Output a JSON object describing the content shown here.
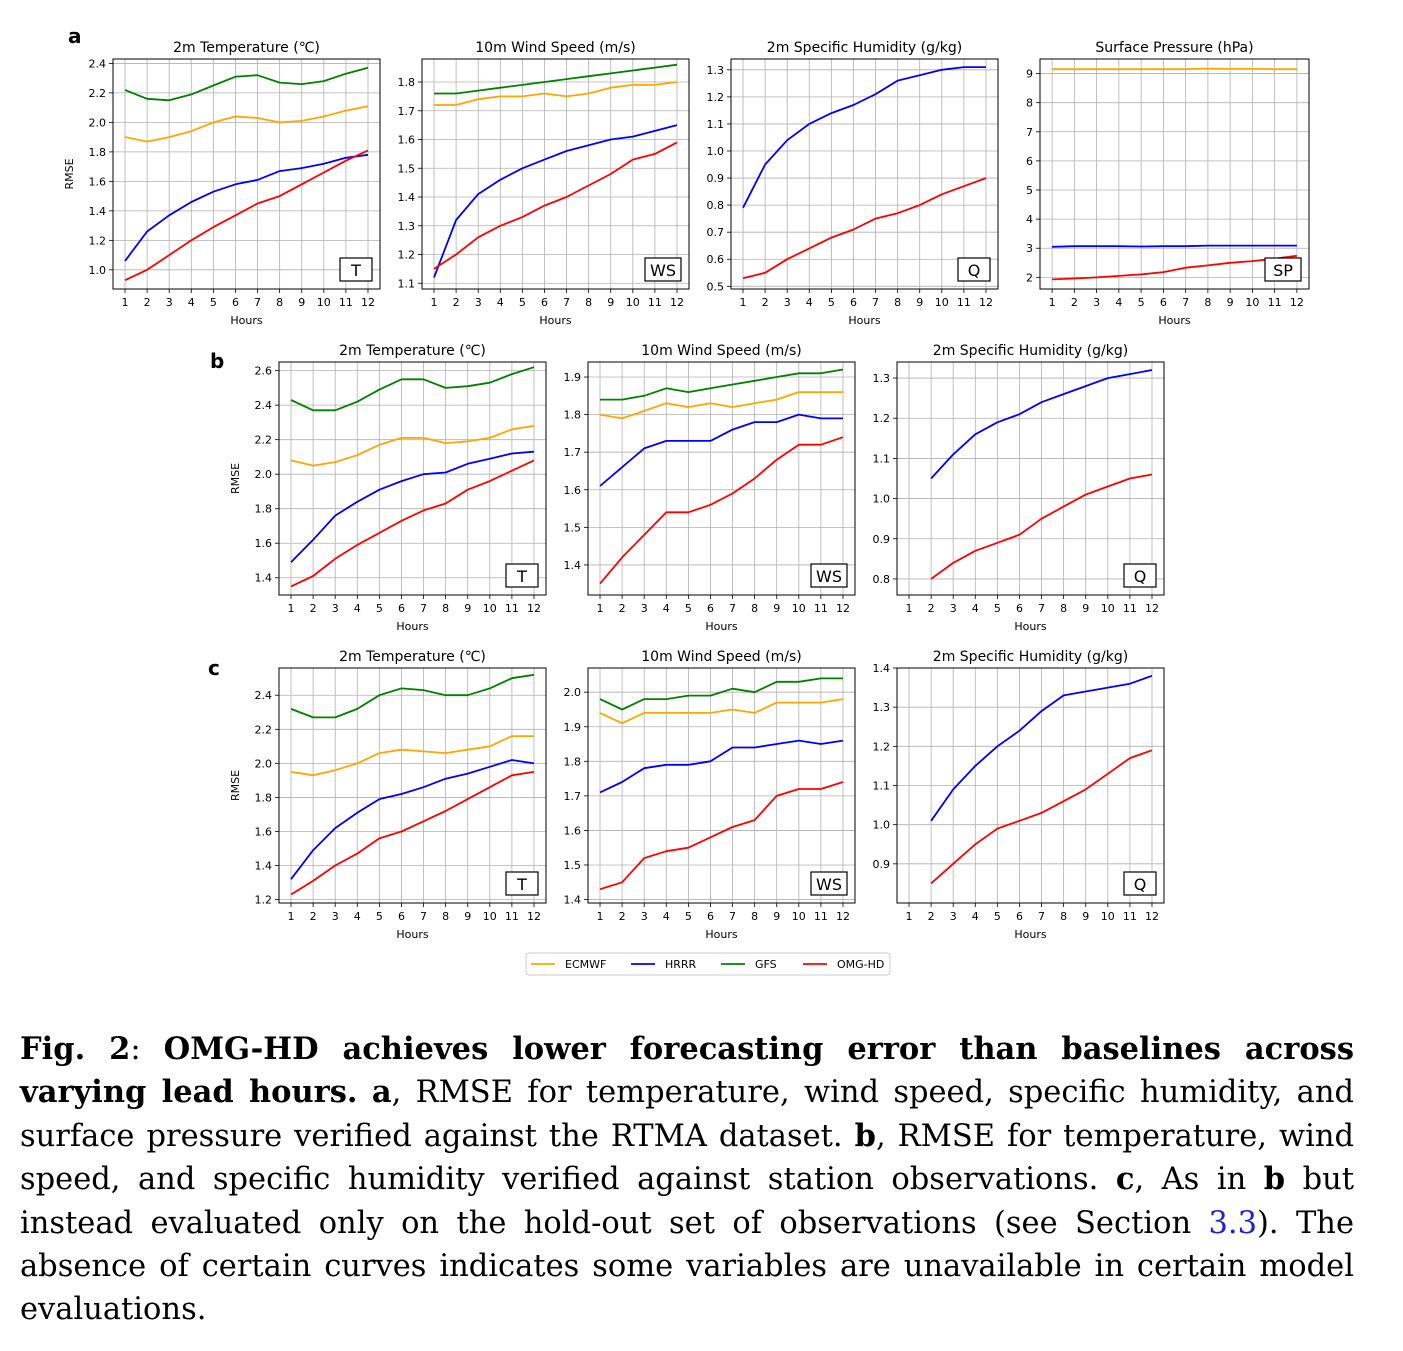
{
  "panel_letters": [
    "a",
    "b",
    "c"
  ],
  "legend": [
    {
      "name": "ECMWF",
      "color": "#ffa500"
    },
    {
      "name": "HRRR",
      "color": "#0000ff"
    },
    {
      "name": "GFS",
      "color": "#008000"
    },
    {
      "name": "OMG-HD",
      "color": "#ff0000"
    }
  ],
  "caption": {
    "fig_label": "Fig. 2",
    "colon": ": ",
    "title": "OMG-HD achieves lower forecasting error than baselines across varying lead hours.",
    "a_letter": "a",
    "a_text": ", RMSE for temperature, wind speed, specific humidity, and surface pressure verified against the RTMA dataset. ",
    "b_letter": "b",
    "b_text": ", RMSE for temperature, wind speed, and specific humidity verified against station observations. ",
    "c_letter": "c",
    "c_text_1": ", As in ",
    "c_ref": "b",
    "c_text_2": " but instead evaluated only on the hold-out set of observations (see Section ",
    "section_ref": "3.3",
    "c_text_3": "). The absence of certain curves indicates some variables are unavailable in certain model evaluations."
  },
  "chart_data": [
    {
      "panel": "a",
      "type": "line",
      "title": "2m Temperature (℃)",
      "xlabel": "Hours",
      "ylabel": "RMSE",
      "tag": "T",
      "x": [
        1,
        2,
        3,
        4,
        5,
        6,
        7,
        8,
        9,
        10,
        11,
        12
      ],
      "ylim": [
        0.87,
        2.43
      ],
      "yticks": [
        1.0,
        1.2,
        1.4,
        1.6,
        1.8,
        2.0,
        2.2,
        2.4
      ],
      "grid": true,
      "series": [
        {
          "name": "ECMWF",
          "color": "#ffa500",
          "values": [
            1.9,
            1.87,
            1.9,
            1.94,
            2.0,
            2.04,
            2.03,
            2.0,
            2.01,
            2.04,
            2.08,
            2.11
          ]
        },
        {
          "name": "HRRR",
          "color": "#0000ff",
          "values": [
            1.06,
            1.26,
            1.37,
            1.46,
            1.53,
            1.58,
            1.61,
            1.67,
            1.69,
            1.72,
            1.76,
            1.78
          ]
        },
        {
          "name": "GFS",
          "color": "#008000",
          "values": [
            2.22,
            2.16,
            2.15,
            2.19,
            2.25,
            2.31,
            2.32,
            2.27,
            2.26,
            2.28,
            2.33,
            2.37
          ]
        },
        {
          "name": "OMG-HD",
          "color": "#ff0000",
          "values": [
            0.93,
            1.0,
            1.1,
            1.2,
            1.29,
            1.37,
            1.45,
            1.5,
            1.58,
            1.66,
            1.74,
            1.81
          ]
        }
      ]
    },
    {
      "panel": "a",
      "type": "line",
      "title": "10m Wind Speed (m/s)",
      "xlabel": "Hours",
      "ylabel": "",
      "tag": "WS",
      "x": [
        1,
        2,
        3,
        4,
        5,
        6,
        7,
        8,
        9,
        10,
        11,
        12
      ],
      "ylim": [
        1.08,
        1.88
      ],
      "yticks": [
        1.1,
        1.2,
        1.3,
        1.4,
        1.5,
        1.6,
        1.7,
        1.8
      ],
      "grid": true,
      "series": [
        {
          "name": "ECMWF",
          "color": "#ffa500",
          "values": [
            1.72,
            1.72,
            1.74,
            1.75,
            1.75,
            1.76,
            1.75,
            1.76,
            1.78,
            1.79,
            1.79,
            1.8
          ]
        },
        {
          "name": "HRRR",
          "color": "#0000ff",
          "values": [
            1.12,
            1.32,
            1.41,
            1.46,
            1.5,
            1.53,
            1.56,
            1.58,
            1.6,
            1.61,
            1.63,
            1.65
          ]
        },
        {
          "name": "GFS",
          "color": "#008000",
          "values": [
            1.76,
            1.76,
            1.77,
            1.78,
            1.79,
            1.8,
            1.81,
            1.82,
            1.83,
            1.84,
            1.85,
            1.86
          ]
        },
        {
          "name": "OMG-HD",
          "color": "#ff0000",
          "values": [
            1.15,
            1.2,
            1.26,
            1.3,
            1.33,
            1.37,
            1.4,
            1.44,
            1.48,
            1.53,
            1.55,
            1.59
          ]
        }
      ]
    },
    {
      "panel": "a",
      "type": "line",
      "title": "2m Specific Humidity (g/kg)",
      "xlabel": "Hours",
      "ylabel": "",
      "tag": "Q",
      "x": [
        1,
        2,
        3,
        4,
        5,
        6,
        7,
        8,
        9,
        10,
        11,
        12
      ],
      "ylim": [
        0.49,
        1.34
      ],
      "yticks": [
        0.5,
        0.6,
        0.7,
        0.8,
        0.9,
        1.0,
        1.1,
        1.2,
        1.3
      ],
      "grid": true,
      "series": [
        {
          "name": "HRRR",
          "color": "#0000ff",
          "values": [
            0.79,
            0.95,
            1.04,
            1.1,
            1.14,
            1.17,
            1.21,
            1.26,
            1.28,
            1.3,
            1.31,
            1.31
          ]
        },
        {
          "name": "OMG-HD",
          "color": "#ff0000",
          "values": [
            0.53,
            0.55,
            0.6,
            0.64,
            0.68,
            0.71,
            0.75,
            0.77,
            0.8,
            0.84,
            0.87,
            0.9
          ]
        }
      ]
    },
    {
      "panel": "a",
      "type": "line",
      "title": "Surface Pressure (hPa)",
      "xlabel": "Hours",
      "ylabel": "",
      "tag": "SP",
      "x": [
        1,
        2,
        3,
        4,
        5,
        6,
        7,
        8,
        9,
        10,
        11,
        12
      ],
      "ylim": [
        1.6,
        9.5
      ],
      "yticks": [
        2,
        3,
        4,
        5,
        6,
        7,
        8,
        9
      ],
      "grid": true,
      "series": [
        {
          "name": "ECMWF",
          "color": "#ffa500",
          "values": [
            9.15,
            9.15,
            9.15,
            9.15,
            9.15,
            9.15,
            9.15,
            9.17,
            9.16,
            9.16,
            9.15,
            9.15
          ]
        },
        {
          "name": "HRRR",
          "color": "#0000ff",
          "values": [
            3.05,
            3.07,
            3.07,
            3.07,
            3.06,
            3.07,
            3.07,
            3.09,
            3.09,
            3.09,
            3.09,
            3.09
          ]
        },
        {
          "name": "OMG-HD",
          "color": "#ff0000",
          "values": [
            1.93,
            1.96,
            2.0,
            2.05,
            2.1,
            2.18,
            2.33,
            2.41,
            2.5,
            2.56,
            2.64,
            2.74
          ]
        }
      ]
    },
    {
      "panel": "b",
      "type": "line",
      "title": "2m Temperature (℃)",
      "xlabel": "Hours",
      "ylabel": "RMSE",
      "tag": "T",
      "x": [
        1,
        2,
        3,
        4,
        5,
        6,
        7,
        8,
        9,
        10,
        11,
        12
      ],
      "ylim": [
        1.3,
        2.65
      ],
      "yticks": [
        1.4,
        1.6,
        1.8,
        2.0,
        2.2,
        2.4,
        2.6
      ],
      "grid": true,
      "series": [
        {
          "name": "ECMWF",
          "color": "#ffa500",
          "values": [
            2.08,
            2.05,
            2.07,
            2.11,
            2.17,
            2.21,
            2.21,
            2.18,
            2.19,
            2.21,
            2.26,
            2.28
          ]
        },
        {
          "name": "HRRR",
          "color": "#0000ff",
          "values": [
            1.49,
            1.62,
            1.76,
            1.84,
            1.91,
            1.96,
            2.0,
            2.01,
            2.06,
            2.09,
            2.12,
            2.13
          ]
        },
        {
          "name": "GFS",
          "color": "#008000",
          "values": [
            2.43,
            2.37,
            2.37,
            2.42,
            2.49,
            2.55,
            2.55,
            2.5,
            2.51,
            2.53,
            2.58,
            2.62
          ]
        },
        {
          "name": "OMG-HD",
          "color": "#ff0000",
          "values": [
            1.35,
            1.41,
            1.51,
            1.59,
            1.66,
            1.73,
            1.79,
            1.83,
            1.91,
            1.96,
            2.02,
            2.08
          ]
        }
      ]
    },
    {
      "panel": "b",
      "type": "line",
      "title": "10m Wind Speed (m/s)",
      "xlabel": "Hours",
      "ylabel": "",
      "tag": "WS",
      "x": [
        1,
        2,
        3,
        4,
        5,
        6,
        7,
        8,
        9,
        10,
        11,
        12
      ],
      "ylim": [
        1.32,
        1.94
      ],
      "yticks": [
        1.4,
        1.5,
        1.6,
        1.7,
        1.8,
        1.9
      ],
      "grid": true,
      "series": [
        {
          "name": "ECMWF",
          "color": "#ffa500",
          "values": [
            1.8,
            1.79,
            1.81,
            1.83,
            1.82,
            1.83,
            1.82,
            1.83,
            1.84,
            1.86,
            1.86,
            1.86
          ]
        },
        {
          "name": "HRRR",
          "color": "#0000ff",
          "values": [
            1.61,
            1.66,
            1.71,
            1.73,
            1.73,
            1.73,
            1.76,
            1.78,
            1.78,
            1.8,
            1.79,
            1.79
          ]
        },
        {
          "name": "GFS",
          "color": "#008000",
          "values": [
            1.84,
            1.84,
            1.85,
            1.87,
            1.86,
            1.87,
            1.88,
            1.89,
            1.9,
            1.91,
            1.91,
            1.92
          ]
        },
        {
          "name": "OMG-HD",
          "color": "#ff0000",
          "values": [
            1.35,
            1.42,
            1.48,
            1.54,
            1.54,
            1.56,
            1.59,
            1.63,
            1.68,
            1.72,
            1.72,
            1.74
          ]
        }
      ]
    },
    {
      "panel": "b",
      "type": "line",
      "title": "2m Specific Humidity (g/kg)",
      "xlabel": "Hours",
      "ylabel": "",
      "tag": "Q",
      "x": [
        1,
        2,
        3,
        4,
        5,
        6,
        7,
        8,
        9,
        10,
        11,
        12
      ],
      "ylim": [
        0.76,
        1.34
      ],
      "yticks": [
        0.8,
        0.9,
        1.0,
        1.1,
        1.2,
        1.3
      ],
      "grid": true,
      "series": [
        {
          "name": "HRRR",
          "color": "#0000ff",
          "values": [
            null,
            1.05,
            1.11,
            1.16,
            1.19,
            1.21,
            1.24,
            1.26,
            1.28,
            1.3,
            1.31,
            1.32
          ]
        },
        {
          "name": "OMG-HD",
          "color": "#ff0000",
          "values": [
            null,
            0.8,
            0.84,
            0.87,
            0.89,
            0.91,
            0.95,
            0.98,
            1.01,
            1.03,
            1.05,
            1.06
          ]
        }
      ]
    },
    {
      "panel": "c",
      "type": "line",
      "title": "2m Temperature (℃)",
      "xlabel": "Hours",
      "ylabel": "RMSE",
      "tag": "T",
      "x": [
        1,
        2,
        3,
        4,
        5,
        6,
        7,
        8,
        9,
        10,
        11,
        12
      ],
      "ylim": [
        1.18,
        2.56
      ],
      "yticks": [
        1.2,
        1.4,
        1.6,
        1.8,
        2.0,
        2.2,
        2.4
      ],
      "grid": true,
      "series": [
        {
          "name": "ECMWF",
          "color": "#ffa500",
          "values": [
            1.95,
            1.93,
            1.96,
            2.0,
            2.06,
            2.08,
            2.07,
            2.06,
            2.08,
            2.1,
            2.16,
            2.16
          ]
        },
        {
          "name": "HRRR",
          "color": "#0000ff",
          "values": [
            1.32,
            1.49,
            1.62,
            1.71,
            1.79,
            1.82,
            1.86,
            1.91,
            1.94,
            1.98,
            2.02,
            2.0
          ]
        },
        {
          "name": "GFS",
          "color": "#008000",
          "values": [
            2.32,
            2.27,
            2.27,
            2.32,
            2.4,
            2.44,
            2.43,
            2.4,
            2.4,
            2.44,
            2.5,
            2.52
          ]
        },
        {
          "name": "OMG-HD",
          "color": "#ff0000",
          "values": [
            1.23,
            1.31,
            1.4,
            1.47,
            1.56,
            1.6,
            1.66,
            1.72,
            1.79,
            1.86,
            1.93,
            1.95
          ]
        }
      ]
    },
    {
      "panel": "c",
      "type": "line",
      "title": "10m Wind Speed (m/s)",
      "xlabel": "Hours",
      "ylabel": "",
      "tag": "WS",
      "x": [
        1,
        2,
        3,
        4,
        5,
        6,
        7,
        8,
        9,
        10,
        11,
        12
      ],
      "ylim": [
        1.39,
        2.07
      ],
      "yticks": [
        1.4,
        1.5,
        1.6,
        1.7,
        1.8,
        1.9,
        2.0
      ],
      "grid": true,
      "series": [
        {
          "name": "ECMWF",
          "color": "#ffa500",
          "values": [
            1.94,
            1.91,
            1.94,
            1.94,
            1.94,
            1.94,
            1.95,
            1.94,
            1.97,
            1.97,
            1.97,
            1.98
          ]
        },
        {
          "name": "HRRR",
          "color": "#0000ff",
          "values": [
            1.71,
            1.74,
            1.78,
            1.79,
            1.79,
            1.8,
            1.84,
            1.84,
            1.85,
            1.86,
            1.85,
            1.86
          ]
        },
        {
          "name": "GFS",
          "color": "#008000",
          "values": [
            1.98,
            1.95,
            1.98,
            1.98,
            1.99,
            1.99,
            2.01,
            2.0,
            2.03,
            2.03,
            2.04,
            2.04
          ]
        },
        {
          "name": "OMG-HD",
          "color": "#ff0000",
          "values": [
            1.43,
            1.45,
            1.52,
            1.54,
            1.55,
            1.58,
            1.61,
            1.63,
            1.7,
            1.72,
            1.72,
            1.74
          ]
        }
      ]
    },
    {
      "panel": "c",
      "type": "line",
      "title": "2m Specific Humidity (g/kg)",
      "xlabel": "Hours",
      "ylabel": "",
      "tag": "Q",
      "x": [
        1,
        2,
        3,
        4,
        5,
        6,
        7,
        8,
        9,
        10,
        11,
        12
      ],
      "ylim": [
        0.8,
        1.4
      ],
      "yticks": [
        0.9,
        1.0,
        1.1,
        1.2,
        1.3,
        1.4
      ],
      "grid": true,
      "series": [
        {
          "name": "HRRR",
          "color": "#0000ff",
          "values": [
            null,
            1.01,
            1.09,
            1.15,
            1.2,
            1.24,
            1.29,
            1.33,
            1.34,
            1.35,
            1.36,
            1.38
          ]
        },
        {
          "name": "OMG-HD",
          "color": "#ff0000",
          "values": [
            null,
            0.85,
            0.9,
            0.95,
            0.99,
            1.01,
            1.03,
            1.06,
            1.09,
            1.13,
            1.17,
            1.19
          ]
        }
      ]
    }
  ]
}
